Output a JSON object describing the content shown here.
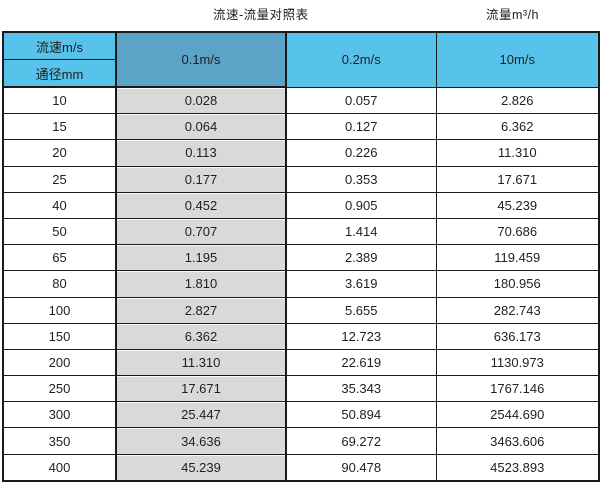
{
  "page": {
    "title_left": "流速-流量对照表",
    "title_right": "流量m³/h"
  },
  "colors": {
    "header_blue": "#58c3ea",
    "highlight_header_blue": "#5ba4c7",
    "highlight_column_gray": "#d9d9d9",
    "border": "#1a1a1a"
  },
  "chart_data": {
    "type": "table",
    "title": "流速-流量对照表",
    "unit_label": "流量m³/h",
    "col_header": "流速m/s",
    "row_header": "通径mm",
    "columns": [
      "0.1m/s",
      "0.2m/s",
      "10m/s"
    ],
    "rows": [
      {
        "diameter": "10",
        "values": [
          "0.028",
          "0.057",
          "2.826"
        ]
      },
      {
        "diameter": "15",
        "values": [
          "0.064",
          "0.127",
          "6.362"
        ]
      },
      {
        "diameter": "20",
        "values": [
          "0.113",
          "0.226",
          "11.310"
        ]
      },
      {
        "diameter": "25",
        "values": [
          "0.177",
          "0.353",
          "17.671"
        ]
      },
      {
        "diameter": "40",
        "values": [
          "0.452",
          "0.905",
          "45.239"
        ]
      },
      {
        "diameter": "50",
        "values": [
          "0.707",
          "1.414",
          "70.686"
        ]
      },
      {
        "diameter": "65",
        "values": [
          "1.195",
          "2.389",
          "119.459"
        ]
      },
      {
        "diameter": "80",
        "values": [
          "1.810",
          "3.619",
          "180.956"
        ]
      },
      {
        "diameter": "100",
        "values": [
          "2.827",
          "5.655",
          "282.743"
        ]
      },
      {
        "diameter": "150",
        "values": [
          "6.362",
          "12.723",
          "636.173"
        ]
      },
      {
        "diameter": "200",
        "values": [
          "11.310",
          "22.619",
          "1130.973"
        ]
      },
      {
        "diameter": "250",
        "values": [
          "17.671",
          "35.343",
          "1767.146"
        ]
      },
      {
        "diameter": "300",
        "values": [
          "25.447",
          "50.894",
          "2544.690"
        ]
      },
      {
        "diameter": "350",
        "values": [
          "34.636",
          "69.272",
          "3463.606"
        ]
      },
      {
        "diameter": "400",
        "values": [
          "45.239",
          "90.478",
          "4523.893"
        ]
      }
    ]
  }
}
